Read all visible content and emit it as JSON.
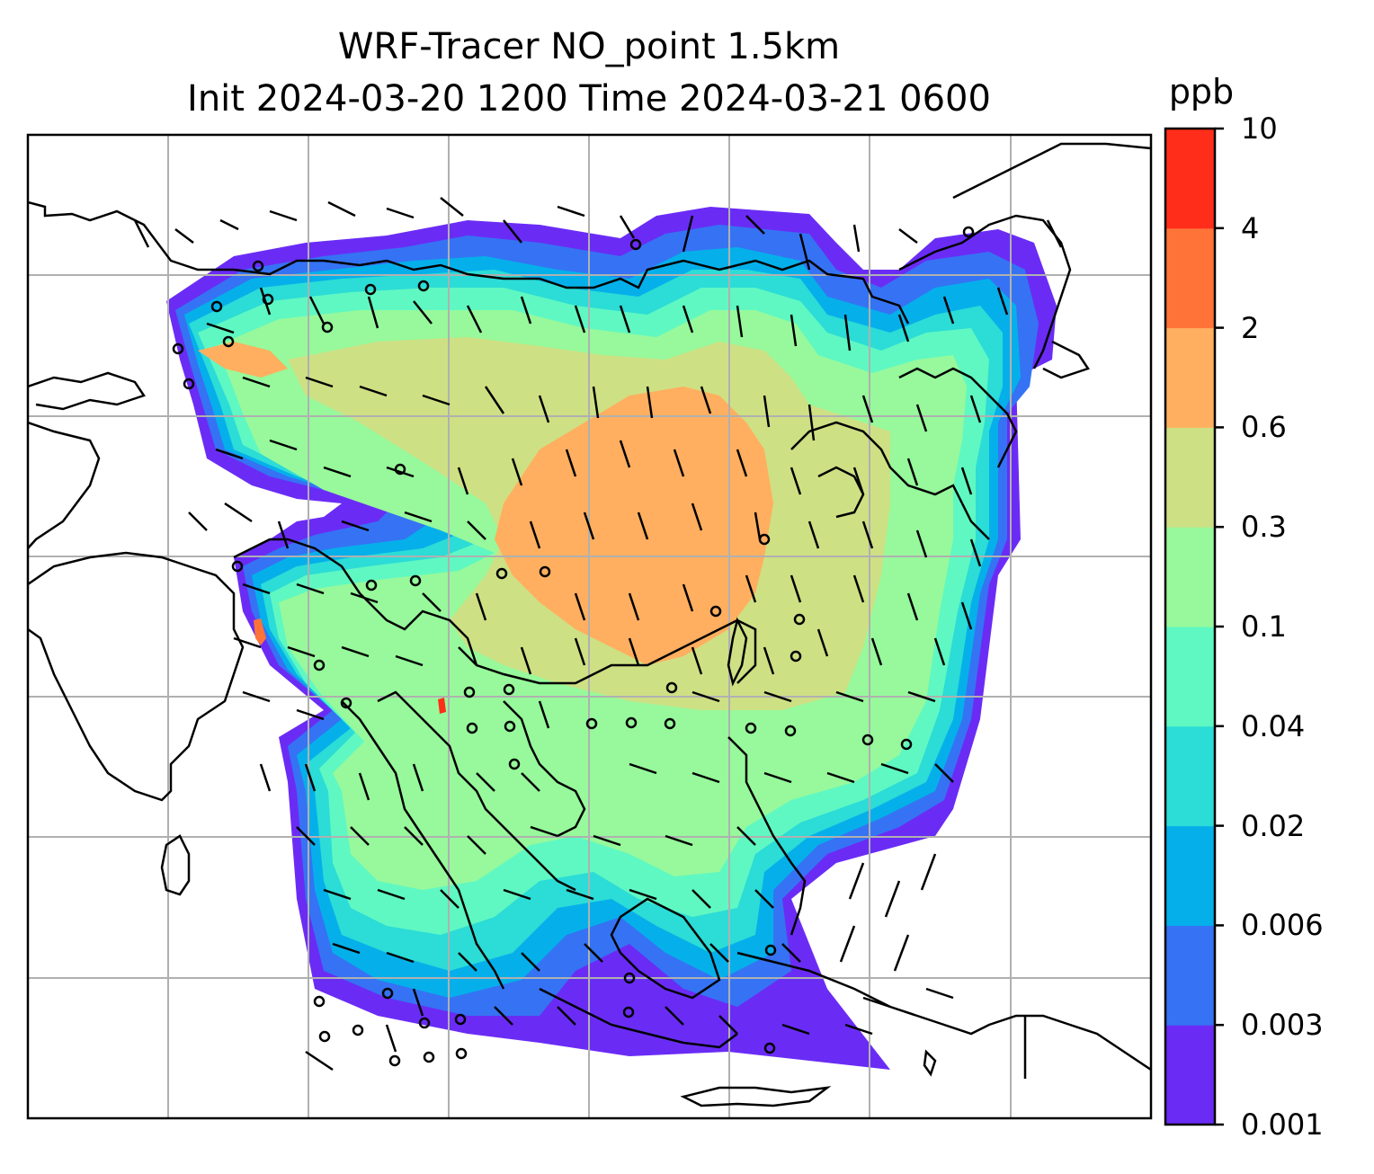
{
  "title": {
    "line1": "WRF-Tracer NO_point 1.5km",
    "line2": "Init 2024-03-20 1200 Time 2024-03-21 0600"
  },
  "colorbar": {
    "unit": "ppb",
    "levels": [
      "0.001",
      "0.003",
      "0.006",
      "0.02",
      "0.04",
      "0.1",
      "0.3",
      "0.6",
      "2",
      "4",
      "10"
    ],
    "colors": [
      "#6a2cf5",
      "#3573f4",
      "#05b0ea",
      "#2cdcd6",
      "#5ff8c2",
      "#97f99b",
      "#cee084",
      "#ffaf5f",
      "#ff7339",
      "#ff2d19"
    ]
  },
  "map": {
    "gridlines": "on",
    "coastline_color": "#000000",
    "grid_color": "#b0b0b0"
  }
}
